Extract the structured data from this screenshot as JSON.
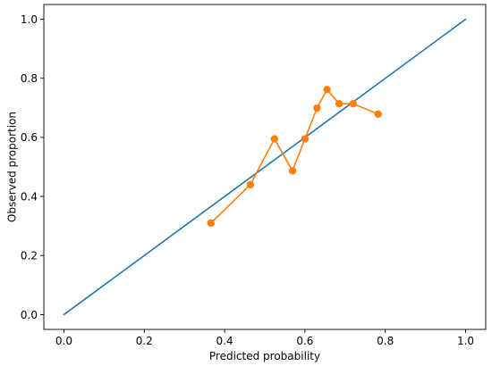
{
  "chart_data": {
    "type": "line",
    "title": "",
    "xlabel": "Predicted probability",
    "ylabel": "Observed proportion",
    "xlim": [
      -0.05,
      1.05
    ],
    "ylim": [
      -0.05,
      1.05
    ],
    "x_ticks": [
      0.0,
      0.2,
      0.4,
      0.6,
      0.8,
      1.0
    ],
    "y_ticks": [
      0.0,
      0.2,
      0.4,
      0.6,
      0.8,
      1.0
    ],
    "x_tick_labels": [
      "0.0",
      "0.2",
      "0.4",
      "0.6",
      "0.8",
      "1.0"
    ],
    "y_tick_labels": [
      "0.0",
      "0.2",
      "0.4",
      "0.6",
      "0.8",
      "1.0"
    ],
    "grid": false,
    "legend": "none",
    "series": [
      {
        "color": "#1f77b4",
        "marker": "none",
        "x": [
          0.0,
          1.0
        ],
        "y": [
          0.0,
          1.0
        ]
      },
      {
        "color": "#ff7f0e",
        "marker": "circle",
        "x": [
          0.366,
          0.464,
          0.524,
          0.569,
          0.6,
          0.63,
          0.655,
          0.685,
          0.72,
          0.782
        ],
        "y": [
          0.31,
          0.44,
          0.595,
          0.487,
          0.595,
          0.699,
          0.762,
          0.714,
          0.714,
          0.679
        ]
      }
    ]
  }
}
